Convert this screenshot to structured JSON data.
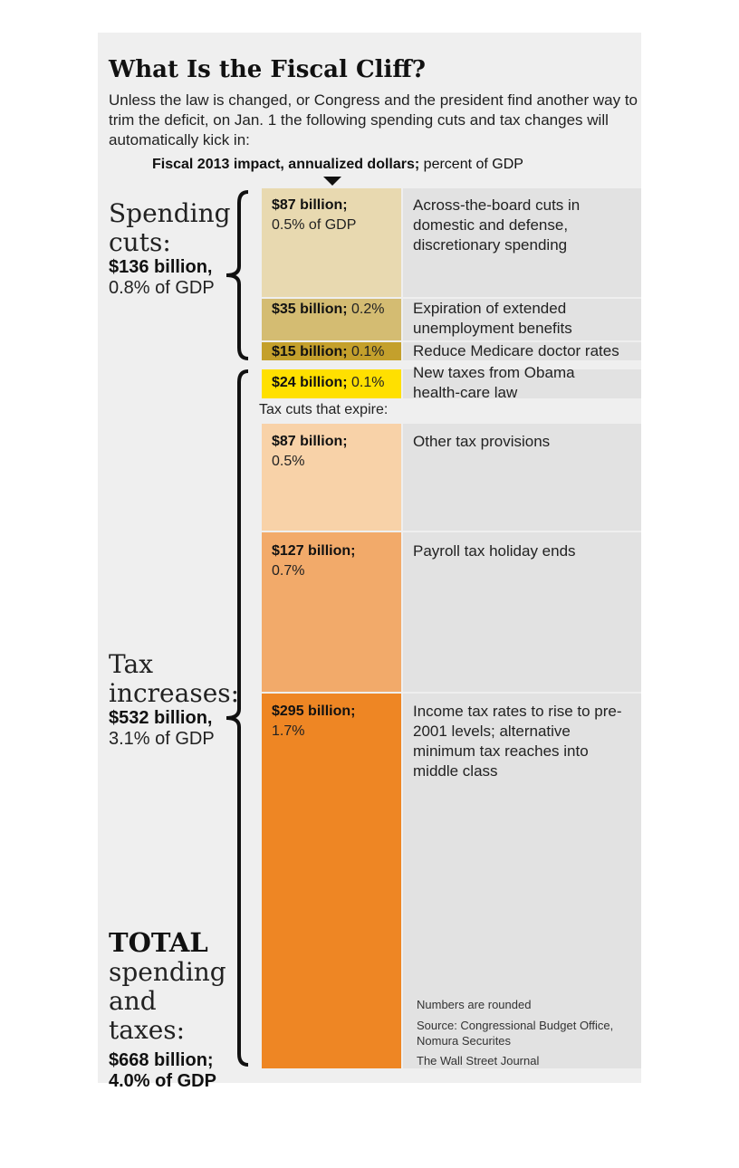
{
  "title": "What Is the Fiscal Cliff?",
  "intro": "Unless the law is changed, or Congress and the president find another way to trim the deficit, on Jan. 1 the following spending cuts and tax changes will automatically kick in:",
  "impact_label_bold": "Fiscal 2013 impact, annualized dollars;",
  "impact_label_rest": " percent of GDP",
  "groups": {
    "spending": {
      "name_line1": "Spending",
      "name_line2": "cuts:",
      "amount": "$136 billion,",
      "pct": "0.8% of GDP"
    },
    "tax": {
      "name_line1": "Tax",
      "name_line2": "increases:",
      "amount": "$532 billion,",
      "pct": "3.1% of GDP"
    },
    "total": {
      "name_line1": "TOTAL",
      "name_line2": "spending",
      "name_line3": "and taxes:",
      "amount": "$668 billion;",
      "pct": "4.0% of GDP"
    }
  },
  "tax_cuts_expire_label": "Tax cuts that expire:",
  "chart_data": {
    "type": "bar",
    "orientation": "stacked-vertical",
    "unit": "billion dollars",
    "segments": [
      {
        "value": 87,
        "value_label": "$87 billion;",
        "pct_label": "0.5% of GDP",
        "pct_gdp": 0.5,
        "description": "Across-the-board cuts in domestic and defense, discretionary spending",
        "group": "Spending cuts",
        "color": "#e8d9b0"
      },
      {
        "value": 35,
        "value_label": "$35 billion;",
        "pct_label": "0.2%",
        "pct_gdp": 0.2,
        "description": "Expiration of extended unemployment benefits",
        "group": "Spending cuts",
        "color": "#d4bc72"
      },
      {
        "value": 15,
        "value_label": "$15 billion;",
        "pct_label": "0.1%",
        "pct_gdp": 0.1,
        "description": "Reduce Medicare doctor rates",
        "group": "Spending cuts",
        "color": "#c4a02c"
      },
      {
        "value": 24,
        "value_label": "$24 billion;",
        "pct_label": "0.1%",
        "pct_gdp": 0.1,
        "description": "New taxes from Obama health-care law",
        "group": "Tax increases",
        "color": "#ffe000"
      },
      {
        "value": 87,
        "value_label": "$87 billion;",
        "pct_label": "0.5%",
        "pct_gdp": 0.5,
        "description": "Other tax provisions",
        "group": "Tax increases",
        "color": "#f8d2a8"
      },
      {
        "value": 127,
        "value_label": "$127 billion;",
        "pct_label": "0.7%",
        "pct_gdp": 0.7,
        "description": "Payroll tax holiday ends",
        "group": "Tax increases",
        "color": "#f2aa6a"
      },
      {
        "value": 295,
        "value_label": "$295 billion;",
        "pct_label": "1.7%",
        "pct_gdp": 1.7,
        "description": "Income tax rates to rise to pre-2001 levels; alternative minimum tax reaches into middle class",
        "group": "Tax increases",
        "color": "#ee8624"
      }
    ]
  },
  "notes": {
    "rounded": "Numbers are rounded",
    "source": "Source: Congressional Budget Office, Nomura Securites",
    "credit": "The Wall Street Journal"
  },
  "colors": {
    "background": "#efefef",
    "strip": "#e2e2e2",
    "brace": "#111111"
  }
}
